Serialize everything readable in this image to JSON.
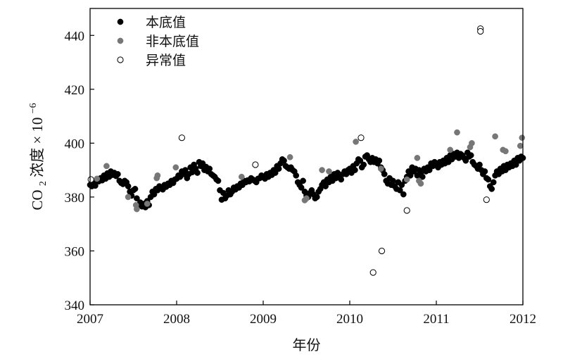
{
  "chart_data": {
    "type": "scatter",
    "xlabel": "年份",
    "ylabel": {
      "prefix": "CO",
      "subscript": "2",
      "main": "浓度",
      "times": "×",
      "base": "10",
      "exponent": "−6"
    },
    "xlim": [
      2007,
      2012
    ],
    "ylim": [
      340,
      450
    ],
    "xticks": [
      2007,
      2008,
      2009,
      2010,
      2011,
      2012
    ],
    "xtick_labels": [
      "2007",
      "2008",
      "2009",
      "2010",
      "2011",
      "2012"
    ],
    "yticks": [
      340,
      360,
      380,
      400,
      420,
      440
    ],
    "ytick_labels": [
      "340",
      "360",
      "380",
      "400",
      "420",
      "440"
    ],
    "grid": false,
    "legend": "top-left",
    "colors": {
      "baseline": "#000000",
      "non_baseline": "#777777",
      "outlier_stroke": "#000000"
    },
    "series": [
      {
        "name": "本底值",
        "marker": "filled-black",
        "points": [
          [
            2007.0,
            384.5
          ],
          [
            2007.02,
            384.0
          ],
          [
            2007.04,
            385.5
          ],
          [
            2007.06,
            384.2
          ],
          [
            2007.08,
            386.5
          ],
          [
            2007.1,
            385.8
          ],
          [
            2007.12,
            387.0
          ],
          [
            2007.14,
            386.2
          ],
          [
            2007.16,
            388.0
          ],
          [
            2007.18,
            386.8
          ],
          [
            2007.2,
            388.8
          ],
          [
            2007.22,
            387.5
          ],
          [
            2007.24,
            389.5
          ],
          [
            2007.26,
            388.2
          ],
          [
            2007.28,
            389.0
          ],
          [
            2007.3,
            387.8
          ],
          [
            2007.32,
            388.5
          ],
          [
            2007.34,
            386.0
          ],
          [
            2007.36,
            385.2
          ],
          [
            2007.38,
            384.8
          ],
          [
            2007.4,
            386.0
          ],
          [
            2007.42,
            385.5
          ],
          [
            2007.44,
            384.0
          ],
          [
            2007.46,
            382.0
          ],
          [
            2007.48,
            380.5
          ],
          [
            2007.5,
            382.5
          ],
          [
            2007.52,
            383.0
          ],
          [
            2007.54,
            379.5
          ],
          [
            2007.56,
            377.0
          ],
          [
            2007.58,
            378.0
          ],
          [
            2007.6,
            376.5
          ],
          [
            2007.62,
            377.5
          ],
          [
            2007.64,
            376.2
          ],
          [
            2007.66,
            378.5
          ],
          [
            2007.68,
            377.0
          ],
          [
            2007.7,
            380.0
          ],
          [
            2007.72,
            382.0
          ],
          [
            2007.74,
            381.0
          ],
          [
            2007.76,
            383.0
          ],
          [
            2007.78,
            382.5
          ],
          [
            2007.8,
            384.0
          ],
          [
            2007.82,
            383.5
          ],
          [
            2007.84,
            382.8
          ],
          [
            2007.86,
            384.5
          ],
          [
            2007.88,
            383.8
          ],
          [
            2007.9,
            385.0
          ],
          [
            2007.92,
            384.5
          ],
          [
            2007.94,
            386.0
          ],
          [
            2007.96,
            385.2
          ],
          [
            2007.98,
            386.5
          ],
          [
            2008.0,
            386.8
          ],
          [
            2008.02,
            388.0
          ],
          [
            2008.04,
            387.5
          ],
          [
            2008.06,
            389.5
          ],
          [
            2008.08,
            388.5
          ],
          [
            2008.1,
            390.0
          ],
          [
            2008.12,
            387.0
          ],
          [
            2008.14,
            388.5
          ],
          [
            2008.16,
            391.0
          ],
          [
            2008.18,
            389.2
          ],
          [
            2008.2,
            392.0
          ],
          [
            2008.22,
            390.5
          ],
          [
            2008.24,
            389.0
          ],
          [
            2008.26,
            393.0
          ],
          [
            2008.28,
            391.5
          ],
          [
            2008.3,
            392.5
          ],
          [
            2008.32,
            390.0
          ],
          [
            2008.34,
            391.2
          ],
          [
            2008.36,
            389.5
          ],
          [
            2008.38,
            390.5
          ],
          [
            2008.4,
            388.5
          ],
          [
            2008.42,
            388.0
          ],
          [
            2008.44,
            387.5
          ],
          [
            2008.46,
            386.5
          ],
          [
            2008.48,
            386.0
          ],
          [
            2008.5,
            382.5
          ],
          [
            2008.52,
            379.0
          ],
          [
            2008.54,
            381.5
          ],
          [
            2008.56,
            379.5
          ],
          [
            2008.58,
            380.5
          ],
          [
            2008.6,
            382.5
          ],
          [
            2008.62,
            381.0
          ],
          [
            2008.64,
            382.0
          ],
          [
            2008.66,
            383.5
          ],
          [
            2008.68,
            382.8
          ],
          [
            2008.7,
            384.0
          ],
          [
            2008.72,
            383.5
          ],
          [
            2008.74,
            385.0
          ],
          [
            2008.76,
            384.5
          ],
          [
            2008.78,
            386.0
          ],
          [
            2008.8,
            385.5
          ],
          [
            2008.82,
            386.2
          ],
          [
            2008.84,
            385.8
          ],
          [
            2008.86,
            387.0
          ],
          [
            2008.88,
            386.5
          ],
          [
            2008.9,
            386.0
          ],
          [
            2008.92,
            385.5
          ],
          [
            2008.94,
            386.8
          ],
          [
            2008.96,
            387.0
          ],
          [
            2008.98,
            388.0
          ],
          [
            2009.0,
            387.5
          ],
          [
            2009.02,
            386.8
          ],
          [
            2009.04,
            388.5
          ],
          [
            2009.06,
            387.5
          ],
          [
            2009.08,
            389.0
          ],
          [
            2009.1,
            388.2
          ],
          [
            2009.12,
            390.0
          ],
          [
            2009.14,
            389.0
          ],
          [
            2009.16,
            391.5
          ],
          [
            2009.18,
            390.5
          ],
          [
            2009.2,
            392.5
          ],
          [
            2009.22,
            394.0
          ],
          [
            2009.24,
            393.5
          ],
          [
            2009.26,
            391.5
          ],
          [
            2009.28,
            391.0
          ],
          [
            2009.3,
            390.5
          ],
          [
            2009.32,
            391.0
          ],
          [
            2009.34,
            390.0
          ],
          [
            2009.36,
            389.5
          ],
          [
            2009.38,
            388.0
          ],
          [
            2009.4,
            385.5
          ],
          [
            2009.42,
            384.5
          ],
          [
            2009.44,
            383.5
          ],
          [
            2009.46,
            386.0
          ],
          [
            2009.48,
            382.0
          ],
          [
            2009.5,
            380.5
          ],
          [
            2009.52,
            380.0
          ],
          [
            2009.54,
            381.5
          ],
          [
            2009.56,
            382.5
          ],
          [
            2009.58,
            381.0
          ],
          [
            2009.6,
            379.5
          ],
          [
            2009.62,
            380.0
          ],
          [
            2009.64,
            382.0
          ],
          [
            2009.66,
            383.0
          ],
          [
            2009.68,
            384.5
          ],
          [
            2009.7,
            385.5
          ],
          [
            2009.72,
            384.0
          ],
          [
            2009.74,
            386.5
          ],
          [
            2009.76,
            385.5
          ],
          [
            2009.78,
            387.5
          ],
          [
            2009.8,
            386.0
          ],
          [
            2009.82,
            388.5
          ],
          [
            2009.84,
            387.0
          ],
          [
            2009.86,
            389.0
          ],
          [
            2009.88,
            388.0
          ],
          [
            2009.9,
            386.5
          ],
          [
            2009.92,
            388.5
          ],
          [
            2009.94,
            389.5
          ],
          [
            2009.96,
            388.5
          ],
          [
            2009.98,
            390.0
          ],
          [
            2010.0,
            390.5
          ],
          [
            2010.02,
            389.0
          ],
          [
            2010.04,
            391.5
          ],
          [
            2010.06,
            390.0
          ],
          [
            2010.08,
            392.5
          ],
          [
            2010.1,
            394.0
          ],
          [
            2010.12,
            393.5
          ],
          [
            2010.14,
            391.0
          ],
          [
            2010.16,
            392.0
          ],
          [
            2010.18,
            395.0
          ],
          [
            2010.2,
            395.5
          ],
          [
            2010.22,
            394.0
          ],
          [
            2010.24,
            393.0
          ],
          [
            2010.26,
            394.5
          ],
          [
            2010.28,
            393.0
          ],
          [
            2010.3,
            394.0
          ],
          [
            2010.32,
            392.5
          ],
          [
            2010.34,
            393.5
          ],
          [
            2010.36,
            391.0
          ],
          [
            2010.38,
            390.0
          ],
          [
            2010.4,
            388.5
          ],
          [
            2010.42,
            386.0
          ],
          [
            2010.44,
            385.0
          ],
          [
            2010.46,
            387.0
          ],
          [
            2010.48,
            384.5
          ],
          [
            2010.5,
            386.0
          ],
          [
            2010.52,
            384.0
          ],
          [
            2010.54,
            383.0
          ],
          [
            2010.56,
            385.5
          ],
          [
            2010.58,
            382.5
          ],
          [
            2010.6,
            384.5
          ],
          [
            2010.62,
            381.0
          ],
          [
            2010.64,
            386.0
          ],
          [
            2010.66,
            387.5
          ],
          [
            2010.68,
            389.5
          ],
          [
            2010.7,
            388.0
          ],
          [
            2010.72,
            391.0
          ],
          [
            2010.74,
            389.5
          ],
          [
            2010.76,
            390.5
          ],
          [
            2010.78,
            388.0
          ],
          [
            2010.8,
            390.0
          ],
          [
            2010.82,
            389.0
          ],
          [
            2010.84,
            387.5
          ],
          [
            2010.86,
            390.5
          ],
          [
            2010.88,
            389.5
          ],
          [
            2010.9,
            391.0
          ],
          [
            2010.92,
            390.0
          ],
          [
            2010.94,
            392.5
          ],
          [
            2010.96,
            391.5
          ],
          [
            2010.98,
            393.0
          ],
          [
            2011.0,
            392.0
          ],
          [
            2011.02,
            391.0
          ],
          [
            2011.04,
            393.0
          ],
          [
            2011.06,
            392.0
          ],
          [
            2011.08,
            393.5
          ],
          [
            2011.1,
            392.5
          ],
          [
            2011.12,
            394.5
          ],
          [
            2011.14,
            393.0
          ],
          [
            2011.16,
            395.5
          ],
          [
            2011.18,
            394.0
          ],
          [
            2011.2,
            396.0
          ],
          [
            2011.22,
            395.0
          ],
          [
            2011.24,
            396.5
          ],
          [
            2011.26,
            394.5
          ],
          [
            2011.28,
            396.0
          ],
          [
            2011.3,
            395.5
          ],
          [
            2011.32,
            394.5
          ],
          [
            2011.34,
            393.5
          ],
          [
            2011.36,
            396.5
          ],
          [
            2011.38,
            395.0
          ],
          [
            2011.4,
            395.5
          ],
          [
            2011.42,
            393.0
          ],
          [
            2011.44,
            392.0
          ],
          [
            2011.46,
            391.5
          ],
          [
            2011.48,
            390.5
          ],
          [
            2011.5,
            392.0
          ],
          [
            2011.52,
            390.0
          ],
          [
            2011.54,
            388.5
          ],
          [
            2011.56,
            389.5
          ],
          [
            2011.58,
            387.0
          ],
          [
            2011.6,
            386.5
          ],
          [
            2011.62,
            384.0
          ],
          [
            2011.64,
            383.0
          ],
          [
            2011.66,
            385.5
          ],
          [
            2011.68,
            388.0
          ],
          [
            2011.7,
            389.5
          ],
          [
            2011.72,
            388.5
          ],
          [
            2011.74,
            390.5
          ],
          [
            2011.76,
            389.5
          ],
          [
            2011.78,
            391.5
          ],
          [
            2011.8,
            390.0
          ],
          [
            2011.82,
            392.0
          ],
          [
            2011.84,
            391.0
          ],
          [
            2011.86,
            392.5
          ],
          [
            2011.88,
            391.5
          ],
          [
            2011.9,
            393.5
          ],
          [
            2011.92,
            392.0
          ],
          [
            2011.94,
            394.5
          ],
          [
            2011.96,
            393.5
          ],
          [
            2011.98,
            395.0
          ],
          [
            2012.0,
            394.5
          ]
        ]
      },
      {
        "name": "非本底值",
        "marker": "filled-gray",
        "points": [
          [
            2007.08,
            386.8
          ],
          [
            2007.19,
            391.5
          ],
          [
            2007.44,
            380.0
          ],
          [
            2007.53,
            377.0
          ],
          [
            2007.54,
            375.5
          ],
          [
            2007.66,
            377.5
          ],
          [
            2007.77,
            387.0
          ],
          [
            2007.78,
            388.0
          ],
          [
            2007.99,
            391.0
          ],
          [
            2008.75,
            387.5
          ],
          [
            2009.31,
            394.8
          ],
          [
            2009.48,
            378.8
          ],
          [
            2009.5,
            379.5
          ],
          [
            2009.68,
            390.0
          ],
          [
            2009.76,
            389.5
          ],
          [
            2010.07,
            400.5
          ],
          [
            2010.36,
            390.5
          ],
          [
            2010.66,
            386.5
          ],
          [
            2010.78,
            394.5
          ],
          [
            2010.8,
            386.0
          ],
          [
            2010.82,
            385.0
          ],
          [
            2011.16,
            397.5
          ],
          [
            2011.24,
            404.0
          ],
          [
            2011.39,
            398.5
          ],
          [
            2011.41,
            400.0
          ],
          [
            2011.68,
            402.5
          ],
          [
            2011.77,
            397.5
          ],
          [
            2011.8,
            397.0
          ],
          [
            2011.97,
            399.0
          ],
          [
            2011.99,
            402.0
          ]
        ]
      },
      {
        "name": "异常值",
        "marker": "hollow",
        "points": [
          [
            2007.01,
            386.5
          ],
          [
            2008.06,
            402.0
          ],
          [
            2008.91,
            392.0
          ],
          [
            2010.13,
            402.0
          ],
          [
            2010.27,
            352.0
          ],
          [
            2010.37,
            360.0
          ],
          [
            2010.66,
            375.0
          ],
          [
            2011.51,
            442.5
          ],
          [
            2011.51,
            441.5
          ],
          [
            2011.58,
            379.0
          ]
        ]
      }
    ]
  }
}
